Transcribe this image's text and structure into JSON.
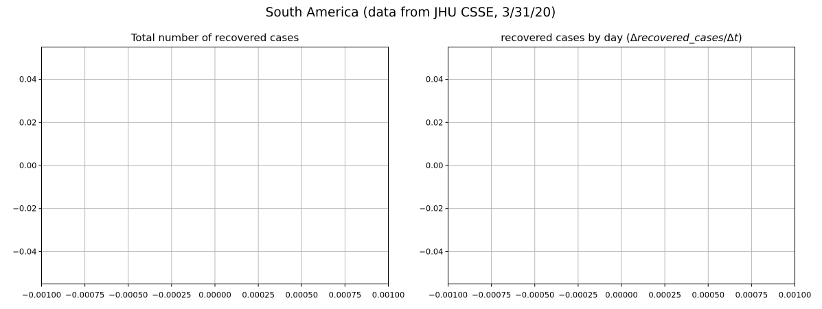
{
  "figure": {
    "suptitle": "South America (data from JHU CSSE, 3/31/20)"
  },
  "chart_data": [
    {
      "type": "line",
      "title": "Total number of recovered cases",
      "xlabel": "",
      "ylabel": "",
      "series": [],
      "xlim": [
        -0.001,
        0.001
      ],
      "ylim": [
        -0.055,
        0.055
      ],
      "xticks": [
        -0.001,
        -0.00075,
        -0.0005,
        -0.00025,
        0.0,
        0.00025,
        0.0005,
        0.00075,
        0.001
      ],
      "xtick_labels": [
        "−0.00100",
        "−0.00075",
        "−0.00050",
        "−0.00025",
        "0.00000",
        "0.00025",
        "0.00050",
        "0.00075",
        "0.00100"
      ],
      "yticks": [
        -0.04,
        -0.02,
        0.0,
        0.02,
        0.04
      ],
      "ytick_labels": [
        "−0.04",
        "−0.02",
        "0.00",
        "0.02",
        "0.04"
      ],
      "grid": true,
      "legend": null
    },
    {
      "type": "line",
      "title": "recovered cases by day (Δrecovered_cases/Δt)",
      "title_parts": {
        "plain": "recovered cases by day ",
        "paren_open": "(",
        "delta1": "Δ",
        "var1": "recovered_cases",
        "slash": "/",
        "delta2": "Δ",
        "var2": "t",
        "paren_close": ")"
      },
      "xlabel": "",
      "ylabel": "",
      "series": [],
      "xlim": [
        -0.001,
        0.001
      ],
      "ylim": [
        -0.055,
        0.055
      ],
      "xticks": [
        -0.001,
        -0.00075,
        -0.0005,
        -0.00025,
        0.0,
        0.00025,
        0.0005,
        0.00075,
        0.001
      ],
      "xtick_labels": [
        "−0.00100",
        "−0.00075",
        "−0.00050",
        "−0.00025",
        "0.00000",
        "0.00025",
        "0.00050",
        "0.00075",
        "0.00100"
      ],
      "yticks": [
        -0.04,
        -0.02,
        0.0,
        0.02,
        0.04
      ],
      "ytick_labels": [
        "−0.04",
        "−0.02",
        "0.00",
        "0.02",
        "0.04"
      ],
      "grid": true,
      "legend": null
    }
  ],
  "colors": {
    "grid": "#b0b0b0",
    "axis": "#000000",
    "background": "#ffffff"
  }
}
